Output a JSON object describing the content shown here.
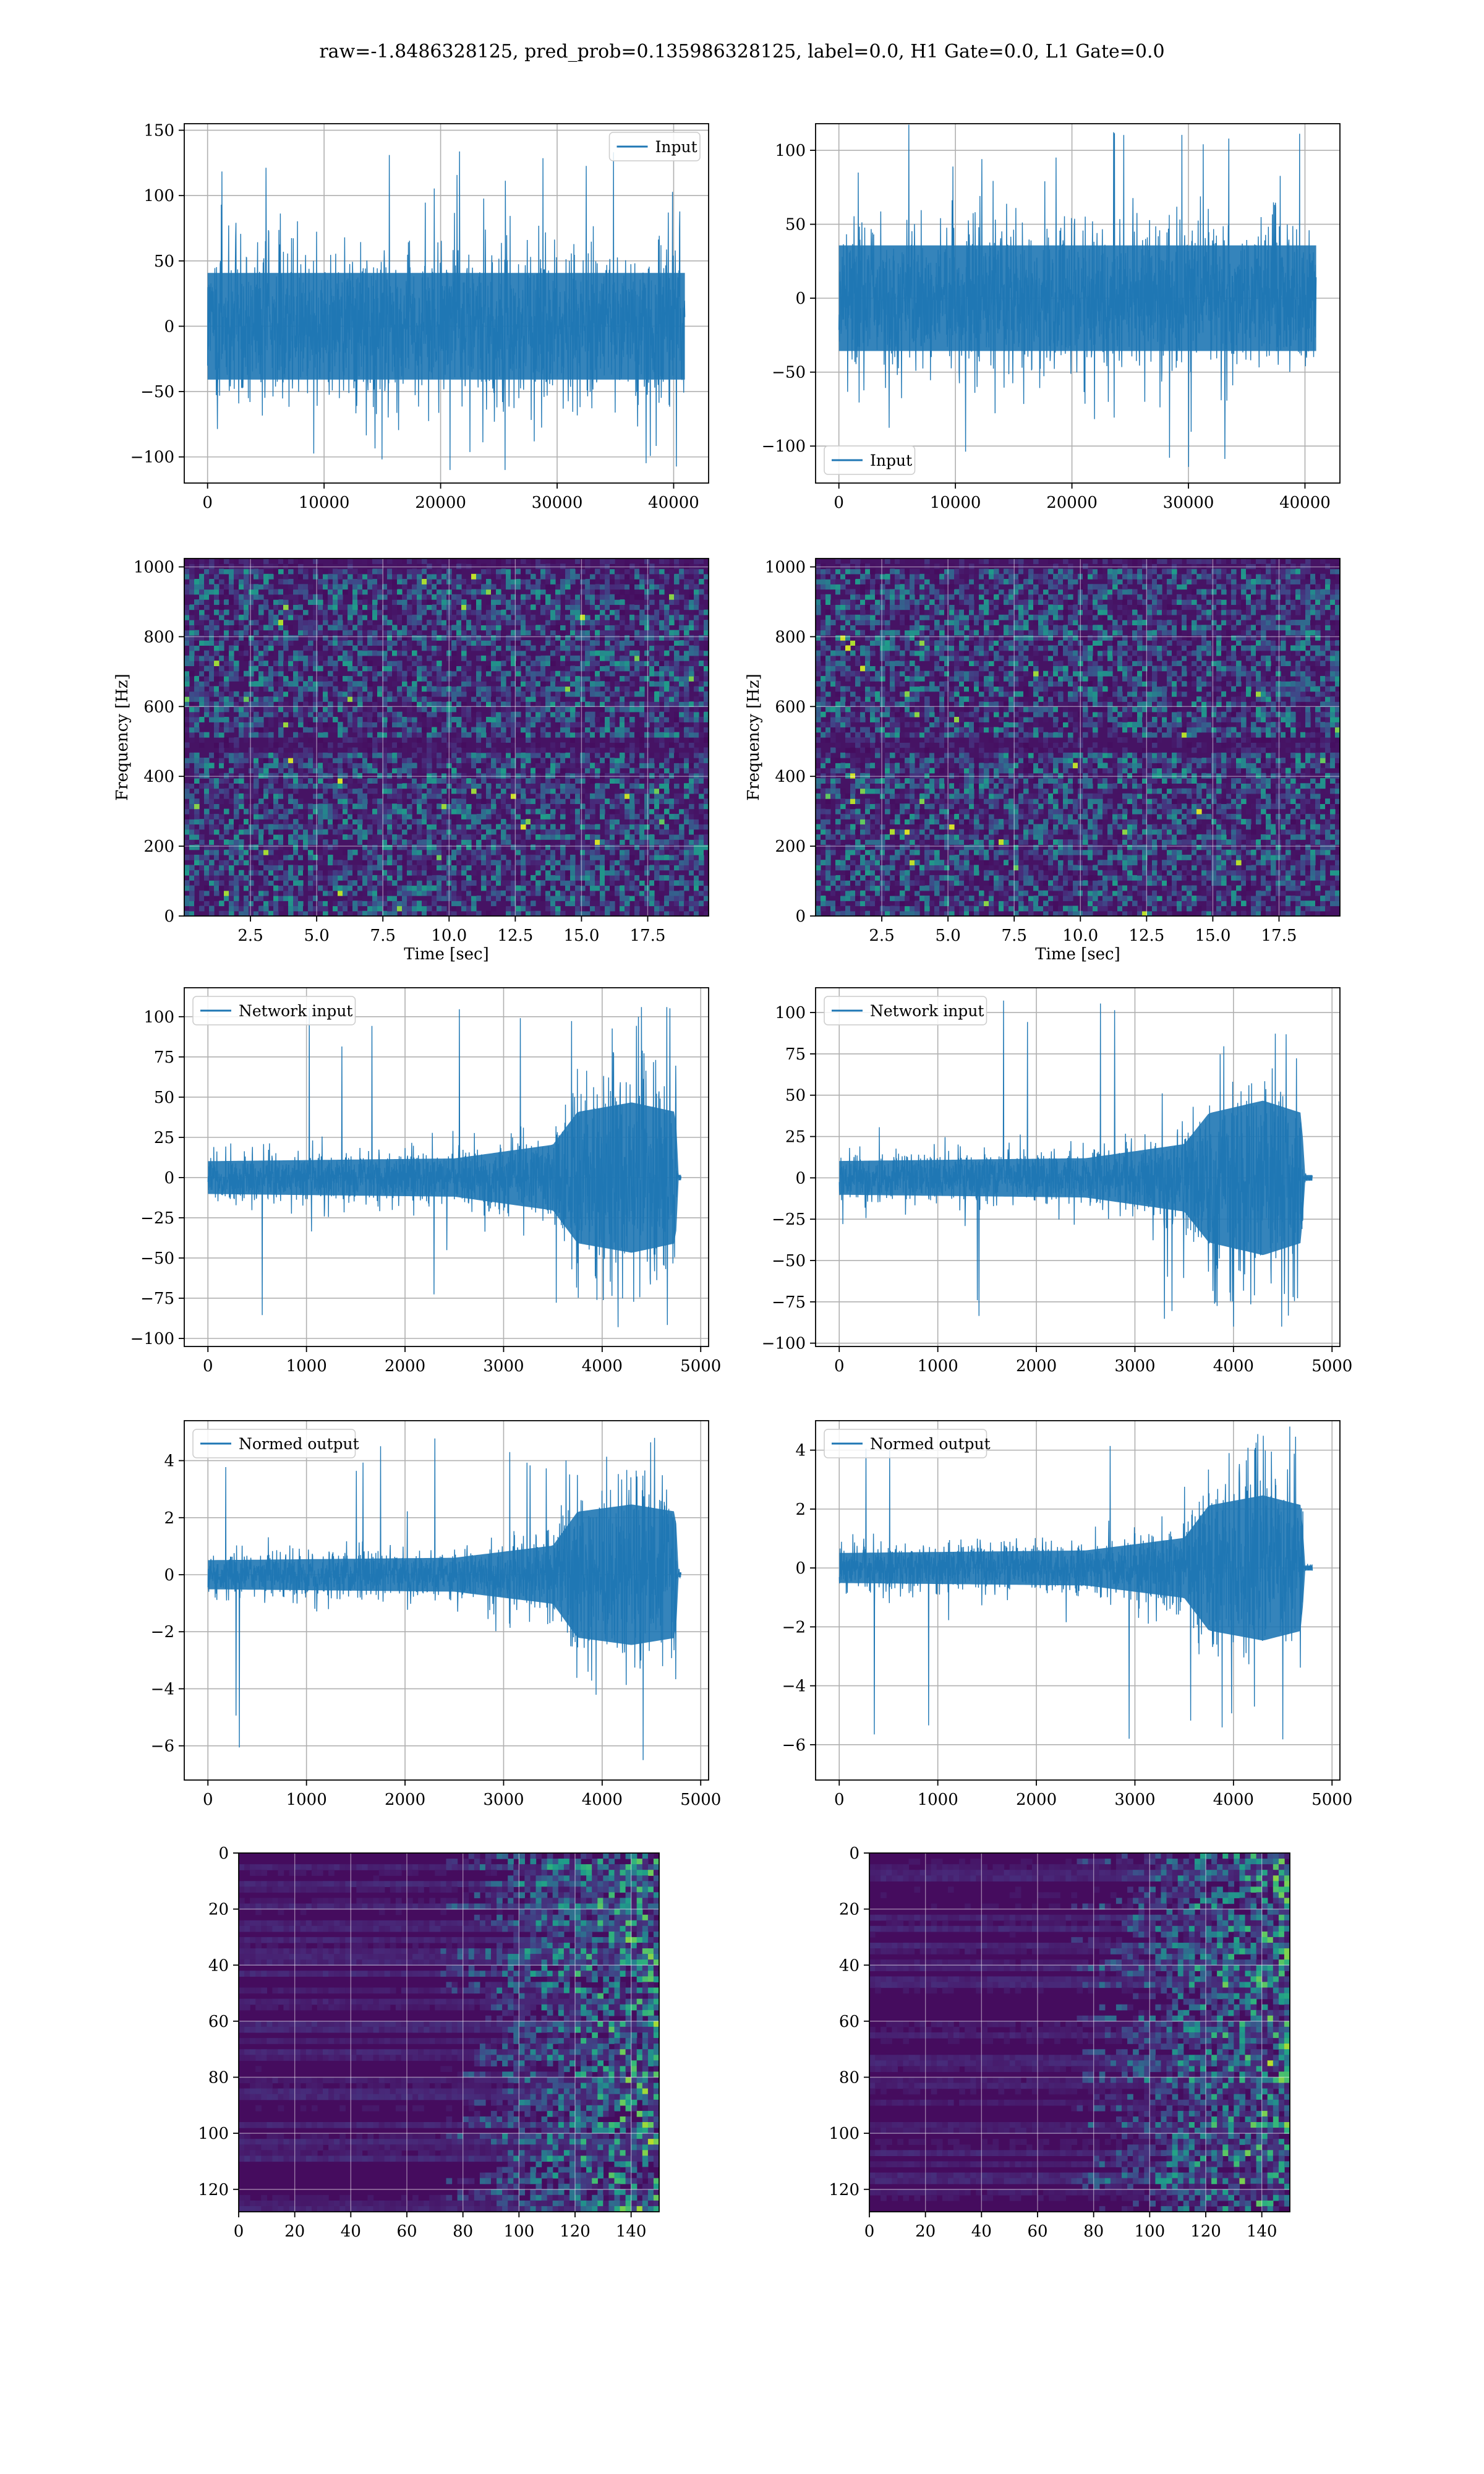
{
  "figure": {
    "title": "raw=-1.8486328125, pred_prob=0.135986328125, label=0.0, H1 Gate=0.0, L1 Gate=0.0"
  },
  "colors": {
    "line": "#1f77b4",
    "grid": "#b0b0b0",
    "axis": "#000000"
  },
  "chart_data": [
    {
      "id": "raw-h1",
      "type": "line",
      "legend": [
        "Input"
      ],
      "legend_loc": "upper right",
      "xlim": [
        -2000,
        43000
      ],
      "ylim": [
        -120,
        155
      ],
      "xticks": [
        0,
        10000,
        20000,
        30000,
        40000
      ],
      "xtick_labels": [
        "0",
        "10000",
        "20000",
        "30000",
        "40000"
      ],
      "yticks": [
        -100,
        -50,
        0,
        50,
        100,
        150
      ],
      "ytick_labels": [
        "−100",
        "−50",
        "0",
        "50",
        "100",
        "150"
      ],
      "xlabel": "",
      "ylabel": "",
      "grid": true,
      "signal": {
        "x_range": [
          0,
          40960
        ],
        "amplitude_envelope": [
          [
            0,
            48
          ],
          [
            40960,
            48
          ]
        ],
        "peak_abs": 135,
        "min": -110,
        "max": 135
      }
    },
    {
      "id": "raw-l1",
      "type": "line",
      "legend": [
        "Input"
      ],
      "legend_loc": "lower left",
      "xlim": [
        -2000,
        43000
      ],
      "ylim": [
        -125,
        118
      ],
      "xticks": [
        0,
        10000,
        20000,
        30000,
        40000
      ],
      "xtick_labels": [
        "0",
        "10000",
        "20000",
        "30000",
        "40000"
      ],
      "yticks": [
        -100,
        -50,
        0,
        50,
        100
      ],
      "ytick_labels": [
        "−100",
        "−50",
        "0",
        "50",
        "100"
      ],
      "xlabel": "",
      "ylabel": "",
      "grid": true,
      "signal": {
        "x_range": [
          0,
          40960
        ],
        "amplitude_envelope": [
          [
            0,
            42
          ],
          [
            40960,
            42
          ]
        ],
        "peak_abs": 118,
        "min": -120,
        "max": 118
      }
    },
    {
      "id": "spec-h1",
      "type": "heatmap",
      "xlim": [
        0,
        19.8
      ],
      "ylim": [
        0,
        1024
      ],
      "xticks": [
        2.5,
        5.0,
        7.5,
        10.0,
        12.5,
        15.0,
        17.5
      ],
      "xtick_labels": [
        "2.5",
        "5.0",
        "7.5",
        "10.0",
        "12.5",
        "15.0",
        "17.5"
      ],
      "yticks": [
        0,
        200,
        400,
        600,
        800,
        1000
      ],
      "ytick_labels": [
        "0",
        "200",
        "400",
        "600",
        "800",
        "1000"
      ],
      "xlabel": "Time [sec]",
      "ylabel": "Frequency [Hz]",
      "grid": true,
      "colormap": "viridis",
      "dark_bands_hz": [
        490,
        1010
      ]
    },
    {
      "id": "spec-l1",
      "type": "heatmap",
      "xlim": [
        0,
        19.8
      ],
      "ylim": [
        0,
        1024
      ],
      "xticks": [
        2.5,
        5.0,
        7.5,
        10.0,
        12.5,
        15.0,
        17.5
      ],
      "xtick_labels": [
        "2.5",
        "5.0",
        "7.5",
        "10.0",
        "12.5",
        "15.0",
        "17.5"
      ],
      "yticks": [
        0,
        200,
        400,
        600,
        800,
        1000
      ],
      "ytick_labels": [
        "0",
        "200",
        "400",
        "600",
        "800",
        "1000"
      ],
      "xlabel": "Time [sec]",
      "ylabel": "Frequency [Hz]",
      "grid": true,
      "colormap": "viridis",
      "dark_bands_hz": [
        490,
        1010
      ]
    },
    {
      "id": "net-h1",
      "type": "line",
      "legend": [
        "Network input"
      ],
      "legend_loc": "upper left",
      "xlim": [
        -240,
        5080
      ],
      "ylim": [
        -105,
        118
      ],
      "xticks": [
        0,
        1000,
        2000,
        3000,
        4000,
        5000
      ],
      "xtick_labels": [
        "0",
        "1000",
        "2000",
        "3000",
        "4000",
        "5000"
      ],
      "yticks": [
        -100,
        -75,
        -50,
        -25,
        0,
        25,
        50,
        75,
        100
      ],
      "ytick_labels": [
        "−100",
        "−75",
        "−50",
        "−25",
        "0",
        "25",
        "50",
        "75",
        "100"
      ],
      "xlabel": "",
      "ylabel": "",
      "grid": true,
      "signal": {
        "x_range": [
          0,
          4800
        ],
        "amplitude_envelope": [
          [
            0,
            12
          ],
          [
            2500,
            14
          ],
          [
            3500,
            24
          ],
          [
            3750,
            48
          ],
          [
            4300,
            55
          ],
          [
            4750,
            48
          ],
          [
            4760,
            2
          ],
          [
            4800,
            2
          ]
        ],
        "peak_abs": 106,
        "min": -93,
        "max": 106
      }
    },
    {
      "id": "net-l1",
      "type": "line",
      "legend": [
        "Network input"
      ],
      "legend_loc": "upper left",
      "xlim": [
        -240,
        5080
      ],
      "ylim": [
        -102,
        115
      ],
      "xticks": [
        0,
        1000,
        2000,
        3000,
        4000,
        5000
      ],
      "xtick_labels": [
        "0",
        "1000",
        "2000",
        "3000",
        "4000",
        "5000"
      ],
      "yticks": [
        -100,
        -75,
        -50,
        -25,
        0,
        25,
        50,
        75,
        100
      ],
      "ytick_labels": [
        "−100",
        "−75",
        "−50",
        "−25",
        "0",
        "25",
        "50",
        "75",
        "100"
      ],
      "xlabel": "",
      "ylabel": "",
      "grid": true,
      "signal": {
        "x_range": [
          0,
          4800
        ],
        "amplitude_envelope": [
          [
            0,
            12
          ],
          [
            2500,
            14
          ],
          [
            3500,
            24
          ],
          [
            3750,
            46
          ],
          [
            4300,
            55
          ],
          [
            4700,
            46
          ],
          [
            4710,
            2
          ],
          [
            4800,
            2
          ]
        ],
        "peak_abs": 108,
        "min": -90,
        "max": 108
      }
    },
    {
      "id": "norm-h1",
      "type": "line",
      "legend": [
        "Normed output"
      ],
      "legend_loc": "upper left",
      "xlim": [
        -240,
        5080
      ],
      "ylim": [
        -7.2,
        5.4
      ],
      "xticks": [
        0,
        1000,
        2000,
        3000,
        4000,
        5000
      ],
      "xtick_labels": [
        "0",
        "1000",
        "2000",
        "3000",
        "4000",
        "5000"
      ],
      "yticks": [
        -6,
        -4,
        -2,
        0,
        2,
        4
      ],
      "ytick_labels": [
        "−6",
        "−4",
        "−2",
        "0",
        "2",
        "4"
      ],
      "xlabel": "",
      "ylabel": "",
      "grid": true,
      "signal": {
        "x_range": [
          0,
          4800
        ],
        "amplitude_envelope": [
          [
            0,
            0.6
          ],
          [
            2500,
            0.7
          ],
          [
            3500,
            1.2
          ],
          [
            3750,
            2.6
          ],
          [
            4300,
            2.9
          ],
          [
            4750,
            2.6
          ],
          [
            4760,
            0.1
          ],
          [
            4800,
            0.1
          ]
        ],
        "peak_abs": 4.8,
        "min": -6.5,
        "max": 4.8
      }
    },
    {
      "id": "norm-l1",
      "type": "line",
      "legend": [
        "Normed output"
      ],
      "legend_loc": "upper left",
      "xlim": [
        -240,
        5080
      ],
      "ylim": [
        -7.2,
        5.0
      ],
      "xticks": [
        0,
        1000,
        2000,
        3000,
        4000,
        5000
      ],
      "xtick_labels": [
        "0",
        "1000",
        "2000",
        "3000",
        "4000",
        "5000"
      ],
      "yticks": [
        -6,
        -4,
        -2,
        0,
        2,
        4
      ],
      "ytick_labels": [
        "−6",
        "−4",
        "−2",
        "0",
        "2",
        "4"
      ],
      "xlabel": "",
      "ylabel": "",
      "grid": true,
      "signal": {
        "x_range": [
          0,
          4800
        ],
        "amplitude_envelope": [
          [
            0,
            0.6
          ],
          [
            2500,
            0.7
          ],
          [
            3500,
            1.2
          ],
          [
            3750,
            2.5
          ],
          [
            4300,
            2.9
          ],
          [
            4700,
            2.5
          ],
          [
            4710,
            0.1
          ],
          [
            4800,
            0.1
          ]
        ],
        "peak_abs": 4.8,
        "min": -6.4,
        "max": 4.8
      }
    },
    {
      "id": "feat-h1",
      "type": "heatmap",
      "xlim": [
        0,
        150
      ],
      "ylim": [
        128,
        0
      ],
      "xticks": [
        0,
        20,
        40,
        60,
        80,
        100,
        120,
        140
      ],
      "xtick_labels": [
        "0",
        "20",
        "40",
        "60",
        "80",
        "100",
        "120",
        "140"
      ],
      "yticks": [
        0,
        20,
        40,
        60,
        80,
        100,
        120
      ],
      "ytick_labels": [
        "0",
        "20",
        "40",
        "60",
        "80",
        "100",
        "120"
      ],
      "xlabel": "",
      "ylabel": "",
      "grid": true,
      "colormap": "viridis",
      "activity_onset_x": 85
    },
    {
      "id": "feat-l1",
      "type": "heatmap",
      "xlim": [
        0,
        150
      ],
      "ylim": [
        128,
        0
      ],
      "xticks": [
        0,
        20,
        40,
        60,
        80,
        100,
        120,
        140
      ],
      "xtick_labels": [
        "0",
        "20",
        "40",
        "60",
        "80",
        "100",
        "120",
        "140"
      ],
      "yticks": [
        0,
        20,
        40,
        60,
        80,
        100,
        120
      ],
      "ytick_labels": [
        "0",
        "20",
        "40",
        "60",
        "80",
        "100",
        "120"
      ],
      "xlabel": "",
      "ylabel": "",
      "grid": true,
      "colormap": "viridis",
      "activity_onset_x": 85
    }
  ]
}
